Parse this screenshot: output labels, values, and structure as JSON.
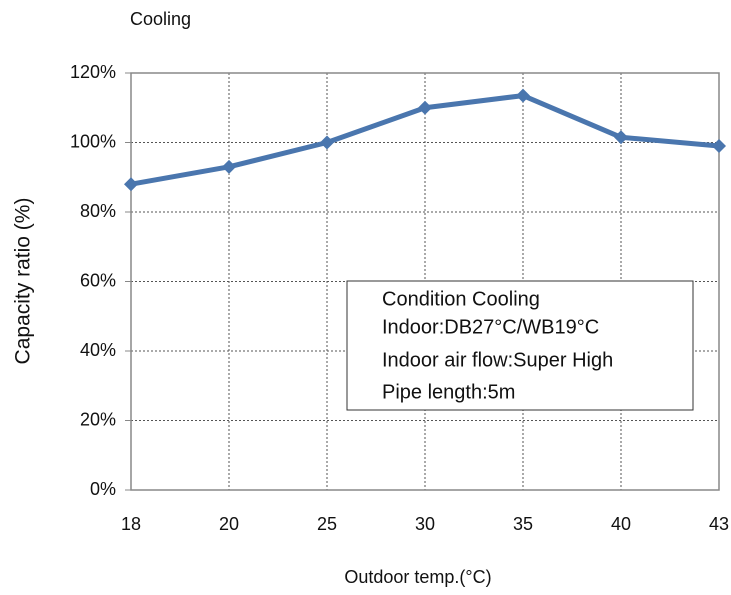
{
  "chart_data": {
    "type": "line",
    "title": "Cooling",
    "x_label": "Outdoor temp.(°C)",
    "y_label": "Capacity ratio (%)",
    "categories": [
      "18",
      "20",
      "25",
      "30",
      "35",
      "40",
      "43"
    ],
    "series": [
      {
        "name": "Capacity ratio",
        "color": "#4a76ae",
        "values": [
          88,
          93,
          100,
          110,
          113.5,
          101.5,
          99
        ]
      }
    ],
    "ylim": [
      0,
      120
    ],
    "yticks": [
      {
        "value": 0,
        "label": "0%"
      },
      {
        "value": 20,
        "label": "20%"
      },
      {
        "value": 40,
        "label": "40%"
      },
      {
        "value": 60,
        "label": "60%"
      },
      {
        "value": 80,
        "label": "80%"
      },
      {
        "value": 100,
        "label": "100%"
      },
      {
        "value": 120,
        "label": "120%"
      }
    ],
    "grid": true,
    "annotation": [
      "Condition Cooling",
      "Indoor:DB27°C/WB19°C",
      "Indoor air flow:Super High",
      "Pipe length:5m"
    ]
  }
}
